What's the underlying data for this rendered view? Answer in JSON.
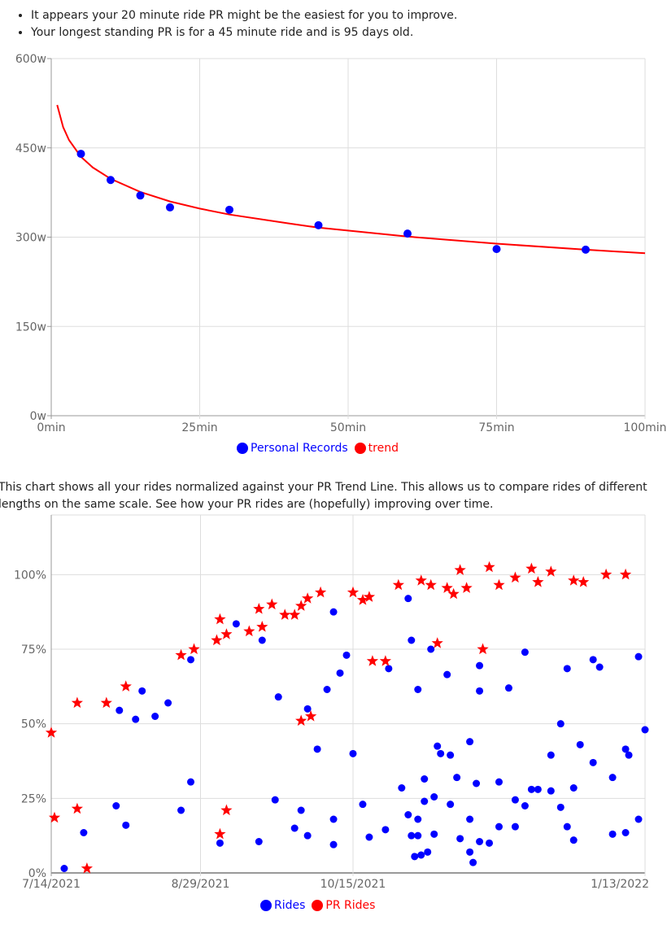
{
  "insights": [
    "It appears your 20 minute ride PR might be the easiest for you to improve.",
    "Your longest standing PR is for a 45 minute ride and is 95 days old."
  ],
  "description": "This chart shows all your rides normalized against your PR Trend Line. This allows us to compare rides of different lengths on the same scale. See how your PR rides are (hopefully) improving over time.",
  "colors": {
    "blue": "#0000ff",
    "red": "#ff0000",
    "grid": "#dddddd",
    "axis": "#999999",
    "tick_text": "#666666"
  },
  "chart_data": [
    {
      "type": "scatter",
      "xlim": [
        0,
        100
      ],
      "ylim": [
        0,
        600
      ],
      "x_ticks": [
        "0min",
        "25min",
        "50min",
        "75min",
        "100min"
      ],
      "x_tick_values": [
        0,
        25,
        50,
        75,
        100
      ],
      "y_ticks": [
        "0w",
        "150w",
        "300w",
        "450w",
        "600w"
      ],
      "y_tick_values": [
        0,
        150,
        300,
        450,
        600
      ],
      "grid": true,
      "legend": "bottom",
      "series": [
        {
          "name": "Personal Records",
          "type": "scatter",
          "color": "#0000ff",
          "points": [
            [
              5,
              440
            ],
            [
              10,
              396
            ],
            [
              15,
              370
            ],
            [
              20,
              350
            ],
            [
              30,
              346
            ],
            [
              45,
              320
            ],
            [
              60,
              306
            ],
            [
              75,
              280
            ],
            [
              90,
              279
            ]
          ]
        },
        {
          "name": "trend",
          "type": "line",
          "color": "#ff0000",
          "points": [
            [
              1,
              522
            ],
            [
              2,
              485
            ],
            [
              3,
              463
            ],
            [
              5,
              435
            ],
            [
              7,
              417
            ],
            [
              10,
              398
            ],
            [
              15,
              376
            ],
            [
              20,
              360
            ],
            [
              25,
              348
            ],
            [
              30,
              338
            ],
            [
              40,
              323
            ],
            [
              45,
              316
            ],
            [
              60,
              301
            ],
            [
              75,
              289
            ],
            [
              90,
              279
            ],
            [
              100,
              273
            ]
          ]
        }
      ]
    },
    {
      "type": "scatter",
      "xlim": [
        "7/14/2021",
        "1/13/2022"
      ],
      "ylim": [
        0,
        120
      ],
      "x_ticks": [
        "7/14/2021",
        "8/29/2021",
        "10/15/2021",
        "1/13/2022"
      ],
      "y_ticks": [
        "0%",
        "25%",
        "50%",
        "75%",
        "100%"
      ],
      "y_tick_values": [
        0,
        25,
        50,
        75,
        100
      ],
      "grid": true,
      "legend": "bottom",
      "series": [
        {
          "name": "Rides",
          "marker": "circle",
          "color": "#0000ff",
          "points": [
            [
              "7/18/2021",
              1.5
            ],
            [
              "7/24/2021",
              13.5
            ],
            [
              "8/3/2021",
              22.5
            ],
            [
              "8/4/2021",
              54.5
            ],
            [
              "8/6/2021",
              16
            ],
            [
              "8/9/2021",
              51.5
            ],
            [
              "8/11/2021",
              61
            ],
            [
              "8/15/2021",
              52.5
            ],
            [
              "8/19/2021",
              57
            ],
            [
              "8/23/2021",
              21
            ],
            [
              "8/26/2021",
              71.5
            ],
            [
              "8/26/2021",
              30.5
            ],
            [
              "9/4/2021",
              10
            ],
            [
              "9/9/2021",
              83.5
            ],
            [
              "9/16/2021",
              10.5
            ],
            [
              "9/17/2021",
              78
            ],
            [
              "9/21/2021",
              24.5
            ],
            [
              "9/22/2021",
              59
            ],
            [
              "9/27/2021",
              15
            ],
            [
              "9/29/2021",
              21
            ],
            [
              "10/1/2021",
              55
            ],
            [
              "10/1/2021",
              12.5
            ],
            [
              "10/4/2021",
              41.5
            ],
            [
              "10/7/2021",
              61.5
            ],
            [
              "10/9/2021",
              87.5
            ],
            [
              "10/9/2021",
              18
            ],
            [
              "10/9/2021",
              9.5
            ],
            [
              "10/11/2021",
              67
            ],
            [
              "10/13/2021",
              73
            ],
            [
              "10/15/2021",
              40
            ],
            [
              "10/18/2021",
              23
            ],
            [
              "10/20/2021",
              12
            ],
            [
              "10/25/2021",
              14.5
            ],
            [
              "10/26/2021",
              68.5
            ],
            [
              "10/30/2021",
              28.5
            ],
            [
              "11/1/2021",
              92
            ],
            [
              "11/1/2021",
              19.5
            ],
            [
              "11/2/2021",
              12.5
            ],
            [
              "11/2/2021",
              78
            ],
            [
              "11/3/2021",
              5.5
            ],
            [
              "11/4/2021",
              61.5
            ],
            [
              "11/4/2021",
              18
            ],
            [
              "11/4/2021",
              12.5
            ],
            [
              "11/5/2021",
              6
            ],
            [
              "11/6/2021",
              31.5
            ],
            [
              "11/6/2021",
              24
            ],
            [
              "11/7/2021",
              7
            ],
            [
              "11/8/2021",
              75
            ],
            [
              "11/9/2021",
              25.5
            ],
            [
              "11/9/2021",
              13
            ],
            [
              "11/10/2021",
              42.5
            ],
            [
              "11/11/2021",
              40
            ],
            [
              "11/13/2021",
              66.5
            ],
            [
              "11/14/2021",
              39.5
            ],
            [
              "11/14/2021",
              23
            ],
            [
              "11/16/2021",
              32
            ],
            [
              "11/17/2021",
              11.5
            ],
            [
              "11/20/2021",
              18
            ],
            [
              "11/20/2021",
              44
            ],
            [
              "11/20/2021",
              7
            ],
            [
              "11/21/2021",
              3.5
            ],
            [
              "11/22/2021",
              30
            ],
            [
              "11/23/2021",
              61
            ],
            [
              "11/23/2021",
              10.5
            ],
            [
              "11/23/2021",
              69.5
            ],
            [
              "11/26/2021",
              10
            ],
            [
              "11/29/2021",
              30.5
            ],
            [
              "11/29/2021",
              15.5
            ],
            [
              "12/2/2021",
              62
            ],
            [
              "12/4/2021",
              24.5
            ],
            [
              "12/4/2021",
              15.5
            ],
            [
              "12/7/2021",
              74
            ],
            [
              "12/7/2021",
              22.5
            ],
            [
              "12/9/2021",
              28
            ],
            [
              "12/11/2021",
              28
            ],
            [
              "12/15/2021",
              39.5
            ],
            [
              "12/15/2021",
              27.5
            ],
            [
              "12/18/2021",
              50
            ],
            [
              "12/18/2021",
              22
            ],
            [
              "12/20/2021",
              68.5
            ],
            [
              "12/20/2021",
              15.5
            ],
            [
              "12/22/2021",
              28.5
            ],
            [
              "12/22/2021",
              11
            ],
            [
              "12/24/2021",
              43
            ],
            [
              "12/28/2021",
              71.5
            ],
            [
              "12/28/2021",
              37
            ],
            [
              "12/30/2021",
              69
            ],
            [
              "1/3/2022",
              32
            ],
            [
              "1/3/2022",
              13
            ],
            [
              "1/7/2022",
              41.5
            ],
            [
              "1/8/2022",
              39.5
            ],
            [
              "1/7/2022",
              13.5
            ],
            [
              "1/11/2022",
              72.5
            ],
            [
              "1/11/2022",
              18
            ],
            [
              "1/13/2022",
              48
            ]
          ]
        },
        {
          "name": "PR Rides",
          "marker": "star",
          "color": "#ff0000",
          "points": [
            [
              "7/14/2021",
              47
            ],
            [
              "7/15/2021",
              18.5
            ],
            [
              "7/22/2021",
              57
            ],
            [
              "7/22/2021",
              21.5
            ],
            [
              "7/25/2021",
              1.5
            ],
            [
              "7/31/2021",
              57
            ],
            [
              "8/6/2021",
              62.5
            ],
            [
              "8/23/2021",
              73
            ],
            [
              "8/27/2021",
              75
            ],
            [
              "9/3/2021",
              78
            ],
            [
              "9/4/2021",
              85
            ],
            [
              "9/4/2021",
              13
            ],
            [
              "9/6/2021",
              80
            ],
            [
              "9/6/2021",
              21
            ],
            [
              "9/13/2021",
              81
            ],
            [
              "9/16/2021",
              88.5
            ],
            [
              "9/17/2021",
              82.5
            ],
            [
              "9/20/2021",
              90
            ],
            [
              "9/24/2021",
              86.5
            ],
            [
              "9/27/2021",
              86.5
            ],
            [
              "9/29/2021",
              89.5
            ],
            [
              "9/29/2021",
              51
            ],
            [
              "10/1/2021",
              92
            ],
            [
              "10/2/2021",
              52.5
            ],
            [
              "10/5/2021",
              94
            ],
            [
              "10/15/2021",
              94
            ],
            [
              "10/18/2021",
              91.5
            ],
            [
              "10/20/2021",
              92.5
            ],
            [
              "10/21/2021",
              71
            ],
            [
              "10/25/2021",
              71
            ],
            [
              "10/29/2021",
              96.5
            ],
            [
              "11/5/2021",
              98
            ],
            [
              "11/8/2021",
              96.5
            ],
            [
              "11/10/2021",
              77
            ],
            [
              "11/13/2021",
              95.5
            ],
            [
              "11/15/2021",
              93.5
            ],
            [
              "11/17/2021",
              101.5
            ],
            [
              "11/19/2021",
              95.5
            ],
            [
              "11/24/2021",
              75
            ],
            [
              "11/26/2021",
              102.5
            ],
            [
              "11/29/2021",
              96.5
            ],
            [
              "12/4/2021",
              99
            ],
            [
              "12/9/2021",
              102
            ],
            [
              "12/11/2021",
              97.5
            ],
            [
              "12/15/2021",
              101
            ],
            [
              "12/22/2021",
              98
            ],
            [
              "12/25/2021",
              97.5
            ],
            [
              "1/1/2022",
              100
            ],
            [
              "1/7/2022",
              100
            ]
          ]
        }
      ]
    }
  ]
}
